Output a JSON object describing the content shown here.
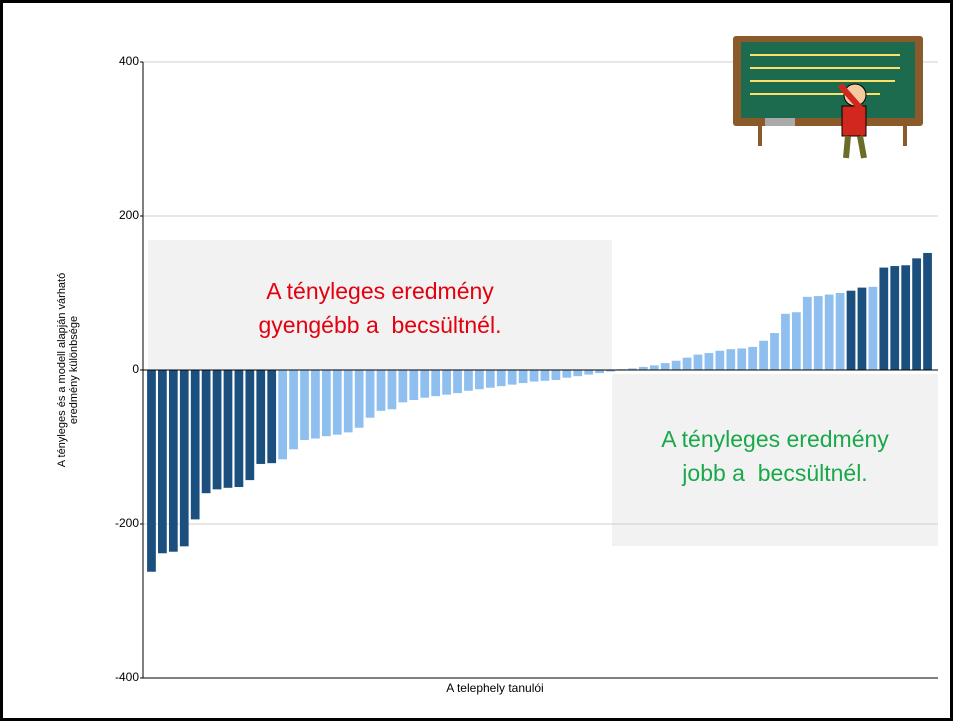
{
  "chart_data": {
    "type": "bar",
    "y_label": [
      "A tényleges és a modell alapján várható",
      "eredmény különbsége"
    ],
    "x_label": "A telephely tanulói",
    "ylim": [
      -400,
      400
    ],
    "yticks": [
      -400,
      -200,
      0,
      200,
      400
    ],
    "grid": true,
    "values": [
      -262,
      -238,
      -236,
      -229,
      -194,
      -160,
      -155,
      -153,
      -152,
      -143,
      -122,
      -121,
      -116,
      -103,
      -91,
      -89,
      -86,
      -84,
      -81,
      -75,
      -62,
      -53,
      -51,
      -42,
      -39,
      -36,
      -34,
      -32,
      -30,
      -27,
      -25,
      -23,
      -21,
      -19,
      -17,
      -15,
      -14,
      -13,
      -10,
      -8,
      -6,
      -4,
      -2,
      1,
      2,
      4,
      6,
      9,
      12,
      16,
      20,
      22,
      25,
      27,
      28,
      30,
      38,
      48,
      73,
      75,
      95,
      96,
      98,
      100,
      103,
      107,
      108,
      133,
      135,
      136,
      145,
      152
    ],
    "colors": [
      "#1b4f7d",
      "#1b4f7d",
      "#1b4f7d",
      "#1b4f7d",
      "#1b4f7d",
      "#1b4f7d",
      "#1b4f7d",
      "#1b4f7d",
      "#1b4f7d",
      "#1b4f7d",
      "#1b4f7d",
      "#1b4f7d",
      "#8fbfef",
      "#8fbfef",
      "#8fbfef",
      "#8fbfef",
      "#8fbfef",
      "#8fbfef",
      "#8fbfef",
      "#8fbfef",
      "#8fbfef",
      "#8fbfef",
      "#8fbfef",
      "#8fbfef",
      "#8fbfef",
      "#8fbfef",
      "#8fbfef",
      "#8fbfef",
      "#8fbfef",
      "#8fbfef",
      "#8fbfef",
      "#8fbfef",
      "#8fbfef",
      "#8fbfef",
      "#8fbfef",
      "#8fbfef",
      "#8fbfef",
      "#8fbfef",
      "#8fbfef",
      "#8fbfef",
      "#8fbfef",
      "#8fbfef",
      "#8fbfef",
      "#8fbfef",
      "#8fbfef",
      "#8fbfef",
      "#8fbfef",
      "#8fbfef",
      "#8fbfef",
      "#8fbfef",
      "#8fbfef",
      "#8fbfef",
      "#8fbfef",
      "#8fbfef",
      "#8fbfef",
      "#8fbfef",
      "#8fbfef",
      "#8fbfef",
      "#8fbfef",
      "#8fbfef",
      "#8fbfef",
      "#8fbfef",
      "#8fbfef",
      "#8fbfef",
      "#1b4f7d",
      "#1b4f7d",
      "#8fbfef",
      "#1b4f7d",
      "#1b4f7d",
      "#1b4f7d",
      "#1b4f7d",
      "#1b4f7d"
    ],
    "annotations": [
      {
        "lines": [
          "A tényleges eredmény",
          "gyengébb a  becsültnél."
        ],
        "color": "#e3000f"
      },
      {
        "lines": [
          "A tényleges eredmény",
          "jobb a  becsültnél."
        ],
        "color": "#1aa84a"
      }
    ]
  }
}
